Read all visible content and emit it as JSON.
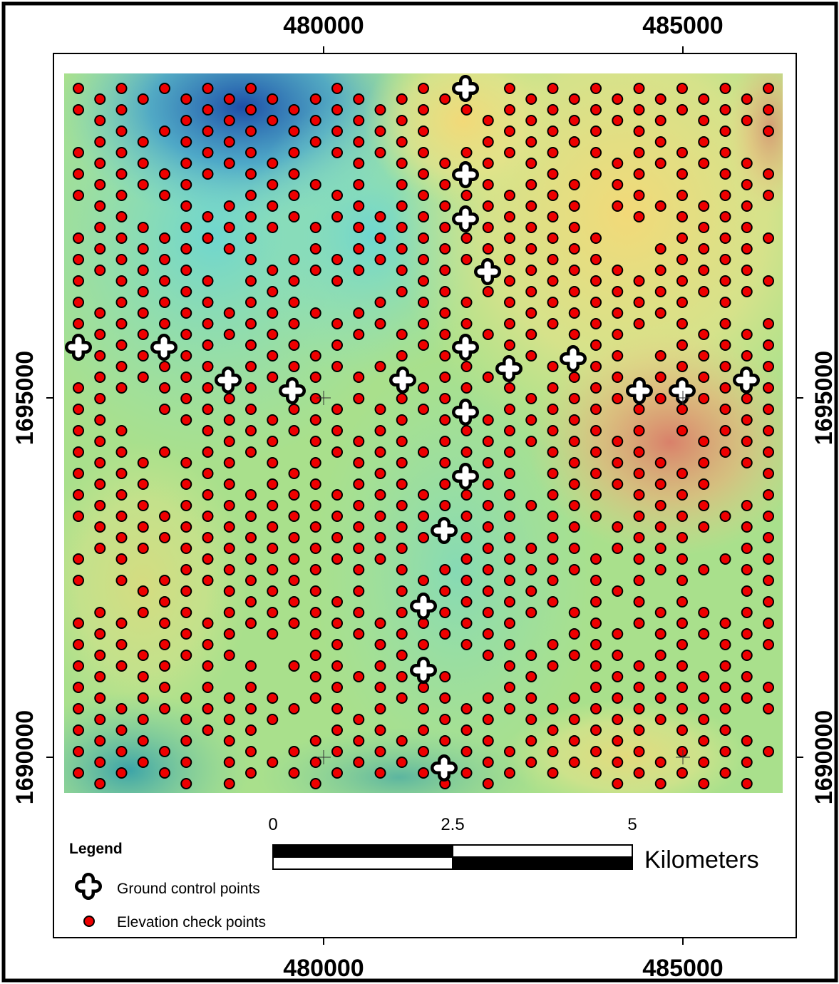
{
  "map": {
    "xticks": [
      480000,
      485000
    ],
    "yticks": [
      1690000,
      1695000
    ],
    "scale_bar": {
      "ticks": [
        0,
        2.5,
        5
      ],
      "unit": "Kilometers"
    },
    "legend": {
      "title": "Legend",
      "items": [
        "Ground control points",
        "Elevation check points"
      ]
    }
  }
}
